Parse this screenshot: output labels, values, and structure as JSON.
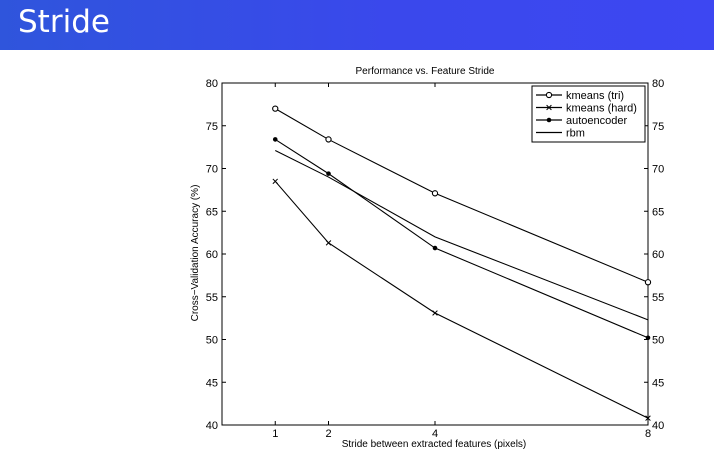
{
  "slide": {
    "title": "Stride"
  },
  "chart_data": {
    "type": "line",
    "title": "Performance vs. Feature Stride",
    "xlabel": "Stride between extracted features (pixels)",
    "ylabel": "Cross−Validation Accuracy (%)",
    "x": [
      1,
      2,
      4,
      8
    ],
    "x_tick_labels": [
      "1",
      "2",
      "4",
      "8"
    ],
    "xlim": [
      0,
      8
    ],
    "ylim": [
      40,
      80
    ],
    "y_ticks": [
      40,
      45,
      50,
      55,
      60,
      65,
      70,
      75,
      80
    ],
    "y_tick_labels": [
      "40",
      "45",
      "50",
      "55",
      "60",
      "65",
      "70",
      "75",
      "80"
    ],
    "grid": false,
    "legend_position": "top-right",
    "series": [
      {
        "name": "kmeans (tri)",
        "values": [
          77.0,
          73.4,
          67.1,
          56.7
        ],
        "marker": "circle"
      },
      {
        "name": "kmeans (hard)",
        "values": [
          68.5,
          61.3,
          53.1,
          40.8
        ],
        "marker": "x"
      },
      {
        "name": "autoencoder",
        "values": [
          73.4,
          69.4,
          60.7,
          50.2
        ],
        "marker": "dot"
      },
      {
        "name": "rbm",
        "values": [
          72.1,
          69.0,
          62.0,
          52.3
        ],
        "marker": "none"
      }
    ],
    "colors": {
      "line": "#000000",
      "banner": "#3a48ec"
    }
  }
}
